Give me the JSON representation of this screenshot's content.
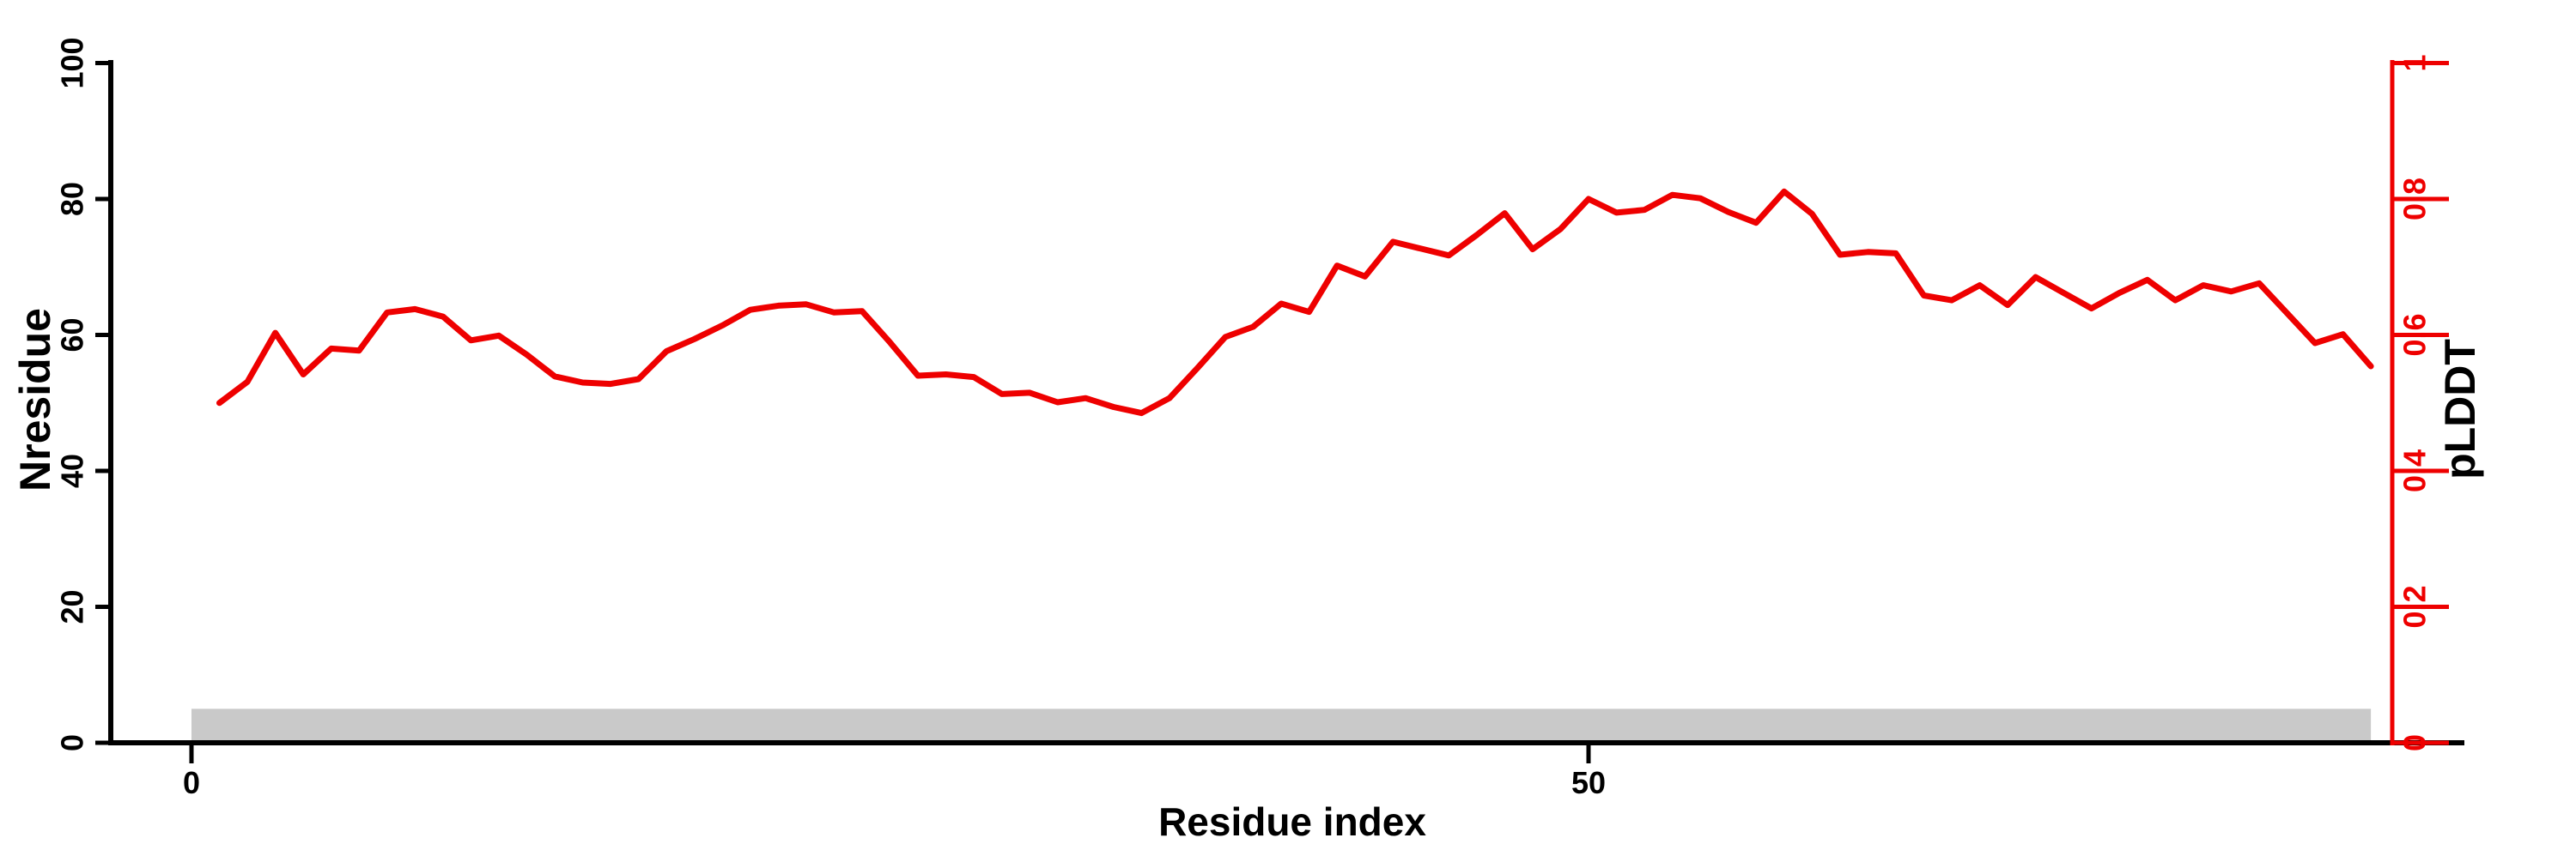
{
  "chart_data": {
    "type": "line",
    "title": "",
    "xlabel": "Residue index",
    "ylabel_left": "Nresidue",
    "ylabel_right": "pLDDT",
    "x_axis": {
      "ticks": [
        {
          "label": "0",
          "value": 0
        },
        {
          "label": "50",
          "value": 50
        }
      ],
      "range": [
        0,
        78.5
      ]
    },
    "y_left_axis": {
      "color": "#000000",
      "ticks": [
        {
          "label": "0",
          "value": 0
        },
        {
          "label": "20",
          "value": 20
        },
        {
          "label": "40",
          "value": 40
        },
        {
          "label": "60",
          "value": 60
        },
        {
          "label": "80",
          "value": 80
        },
        {
          "label": "100",
          "value": 100
        }
      ],
      "range": [
        0,
        100
      ]
    },
    "y_right_axis": {
      "color": "#ee0000",
      "ticks": [
        {
          "label": "0",
          "value": 0
        },
        {
          "label": "0.2",
          "value": 0.2
        },
        {
          "label": "0.4",
          "value": 0.4
        },
        {
          "label": "0.6",
          "value": 0.6
        },
        {
          "label": "0.8",
          "value": 0.8
        },
        {
          "label": "1",
          "value": 1
        }
      ],
      "range": [
        0,
        1
      ]
    },
    "series": [
      {
        "name": "pLDDT",
        "color": "#ee0000",
        "axis": "right",
        "x_start_residue": 1,
        "values": [
          0.5,
          0.531,
          0.603,
          0.542,
          0.58,
          0.577,
          0.633,
          0.638,
          0.627,
          0.592,
          0.599,
          0.571,
          0.539,
          0.53,
          0.528,
          0.535,
          0.576,
          0.594,
          0.614,
          0.637,
          0.643,
          0.645,
          0.633,
          0.635,
          0.589,
          0.54,
          0.542,
          0.538,
          0.513,
          0.515,
          0.501,
          0.507,
          0.494,
          0.485,
          0.507,
          0.551,
          0.597,
          0.612,
          0.646,
          0.634,
          0.702,
          0.686,
          0.737,
          0.727,
          0.717,
          0.747,
          0.779,
          0.726,
          0.756,
          0.8,
          0.78,
          0.784,
          0.806,
          0.801,
          0.781,
          0.765,
          0.811,
          0.778,
          0.718,
          0.722,
          0.72,
          0.658,
          0.651,
          0.673,
          0.644,
          0.685,
          0.662,
          0.639,
          0.662,
          0.681,
          0.651,
          0.673,
          0.664,
          0.676,
          0.632,
          0.588,
          0.601,
          0.554
        ]
      }
    ],
    "annotation_bar": {
      "color": "#c9c9c9",
      "x_start": 0,
      "x_end": 78,
      "y_bottom_left_axis": 0,
      "y_top_left_axis": 5
    },
    "legend": "none",
    "grid": false
  },
  "colors": {
    "background": "#ffffff",
    "axis_black": "#000000",
    "axis_red": "#ee0000",
    "bar_gray": "#c9c9c9"
  }
}
